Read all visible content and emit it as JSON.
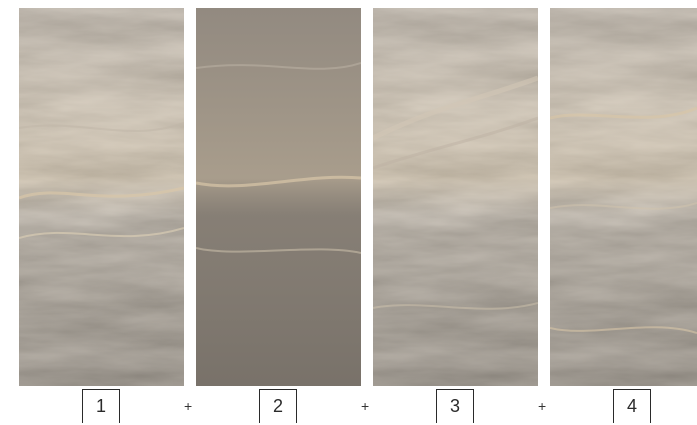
{
  "slabs": [
    {
      "number": "1"
    },
    {
      "number": "2"
    },
    {
      "number": "3"
    },
    {
      "number": "4"
    }
  ],
  "separator": "+",
  "colors": {
    "marble_base": "#8f877d",
    "marble_dark": "#4f4a45",
    "marble_light": "#c9c0b4",
    "marble_vein_beige": "#d8c6a8",
    "label_border": "#2a2a2a"
  }
}
